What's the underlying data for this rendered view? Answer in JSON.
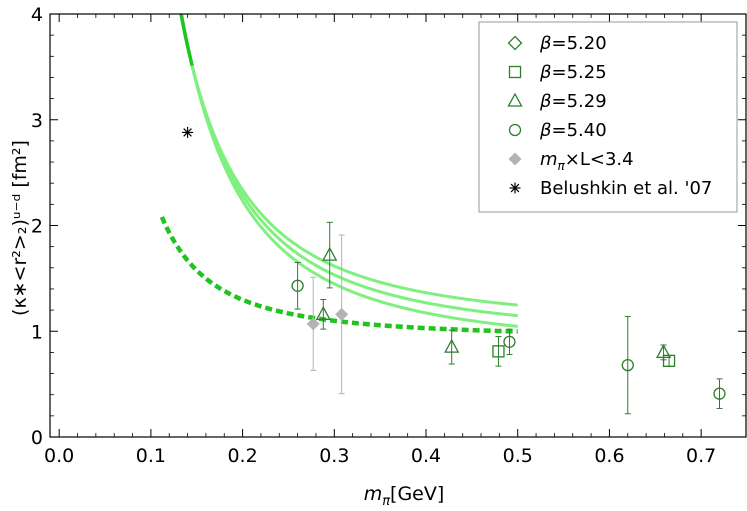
{
  "chart_data": {
    "type": "scatter",
    "xlabel_main": "m",
    "xlabel_sub": "π",
    "xlabel_unit": "[GeV]",
    "ylabel": "(κ∗<r²>₂)ᵘ⁻ᵈ [fm²]",
    "xlim": [
      -0.01,
      0.75
    ],
    "ylim": [
      0,
      4
    ],
    "xticks": [
      0.0,
      0.1,
      0.2,
      0.3,
      0.4,
      0.5,
      0.6,
      0.7
    ],
    "xtick_labels": [
      "0.0",
      "0.1",
      "0.2",
      "0.3",
      "0.4",
      "0.5",
      "0.6",
      "0.7"
    ],
    "yticks": [
      0,
      1,
      2,
      3,
      4
    ],
    "ytick_labels": [
      "0",
      "1",
      "2",
      "3",
      "4"
    ],
    "colors": {
      "green": "#2e7d2e",
      "bright_green": "#1fc41f",
      "light_green": "#7ff07f",
      "gray": "#b3b3b3",
      "black": "#000000"
    },
    "series": [
      {
        "name": "β=5.20",
        "marker": "diamond",
        "points": []
      },
      {
        "name": "β=5.25",
        "marker": "square",
        "points": [
          {
            "x": 0.479,
            "y": 0.81,
            "err": 0.14
          },
          {
            "x": 0.665,
            "y": 0.72,
            "err": 0.05
          }
        ]
      },
      {
        "name": "β=5.29",
        "marker": "triangle",
        "points": [
          {
            "x": 0.295,
            "y": 1.72,
            "err": 0.31
          },
          {
            "x": 0.288,
            "y": 1.16,
            "err": 0.14
          },
          {
            "x": 0.428,
            "y": 0.85,
            "err": 0.16
          },
          {
            "x": 0.659,
            "y": 0.8,
            "err": 0.07
          }
        ]
      },
      {
        "name": "β=5.40",
        "marker": "circle",
        "points": [
          {
            "x": 0.26,
            "y": 1.43,
            "err": 0.22
          },
          {
            "x": 0.491,
            "y": 0.9,
            "err": 0.12
          },
          {
            "x": 0.62,
            "y": 0.68,
            "err": 0.46
          },
          {
            "x": 0.72,
            "y": 0.41,
            "err": 0.14
          }
        ]
      },
      {
        "name": "mπ×L<3.4",
        "marker": "filled-diamond",
        "points": [
          {
            "x": 0.277,
            "y": 1.07,
            "err": 0.44
          },
          {
            "x": 0.308,
            "y": 1.16,
            "err": 0.75
          }
        ]
      },
      {
        "name": "Belushkin et al. '07",
        "marker": "star",
        "points": [
          {
            "x": 0.14,
            "y": 2.88,
            "err": 0
          }
        ]
      }
    ],
    "legend": {
      "position": "top-right",
      "entries": [
        {
          "label_pre": "β",
          "label_post": "=5.20",
          "marker": "diamond"
        },
        {
          "label_pre": "β",
          "label_post": "=5.25",
          "marker": "square"
        },
        {
          "label_pre": "β",
          "label_post": "=5.29",
          "marker": "triangle"
        },
        {
          "label_pre": "β",
          "label_post": "=5.40",
          "marker": "circle"
        },
        {
          "label_pre": "m",
          "label_sub": "π",
          "label_post": "×L<3.4",
          "marker": "filled-diamond"
        },
        {
          "label_pre": "",
          "label_post": "Belushkin et al. '07",
          "marker": "star"
        }
      ]
    },
    "curves": {
      "dashed_fit": {
        "style": "dashed",
        "a": 0.94,
        "b": 0.0143,
        "xrange": [
          0.112,
          0.5
        ]
      },
      "band_center": {
        "style": "solid",
        "a": 0.93,
        "b": 0.0543,
        "xrange": [
          0.088,
          0.5
        ]
      },
      "band_upper": {
        "style": "solid",
        "a": 1.04,
        "b": 0.0519,
        "xrange": [
          0.088,
          0.5
        ]
      },
      "band_lower": {
        "style": "solid",
        "a": 0.82,
        "b": 0.0565,
        "xrange": [
          0.088,
          0.5
        ]
      }
    }
  }
}
